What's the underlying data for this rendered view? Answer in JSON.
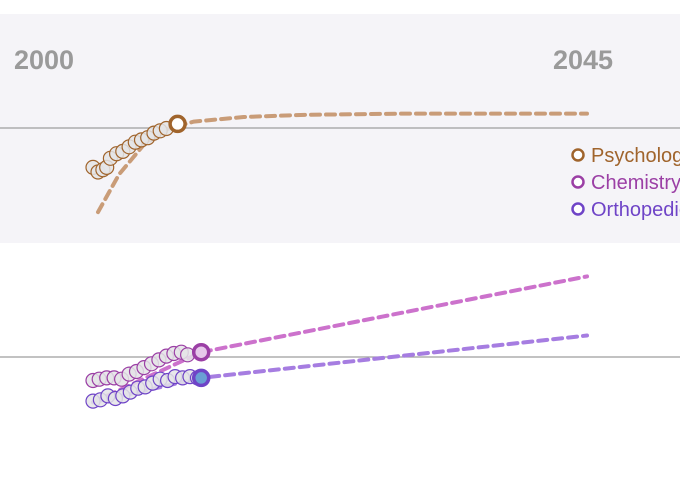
{
  "chart_data": {
    "type": "scatter",
    "x_tick_labels": [
      "2000",
      "2045"
    ],
    "xlim": [
      2000,
      2045
    ],
    "grid": true,
    "legend_position": "right",
    "shaded_band": true,
    "series": [
      {
        "name": "Psychology",
        "color": "#a0642c",
        "trend_color": "#c99c78",
        "points": [
          [
            2004.9,
            0.33
          ],
          [
            2005.3,
            0.31
          ],
          [
            2005.7,
            0.32
          ],
          [
            2006.0,
            0.33
          ],
          [
            2006.3,
            0.37
          ],
          [
            2006.8,
            0.39
          ],
          [
            2007.3,
            0.4
          ],
          [
            2007.8,
            0.42
          ],
          [
            2008.3,
            0.44
          ],
          [
            2008.8,
            0.45
          ],
          [
            2009.3,
            0.46
          ],
          [
            2009.8,
            0.48
          ],
          [
            2010.3,
            0.49
          ],
          [
            2010.8,
            0.5
          ]
        ],
        "highlight": [
          2011.7,
          0.52
        ],
        "trend": [
          [
            2005.3,
            0.135
          ],
          [
            2007.0,
            0.3
          ],
          [
            2009.0,
            0.43
          ],
          [
            2011.0,
            0.5
          ],
          [
            2013.0,
            0.53
          ],
          [
            2017.0,
            0.55
          ],
          [
            2022.0,
            0.56
          ],
          [
            2030.0,
            0.565
          ],
          [
            2044.6,
            0.565
          ]
        ]
      },
      {
        "name": "Chemistry",
        "color": "#9b3fa5",
        "trend_color": "#cc72cc",
        "points": [
          [
            2004.9,
            0.465
          ],
          [
            2005.4,
            0.47
          ],
          [
            2006.0,
            0.475
          ],
          [
            2006.6,
            0.475
          ],
          [
            2007.2,
            0.47
          ],
          [
            2007.8,
            0.49
          ],
          [
            2008.4,
            0.5
          ],
          [
            2009.0,
            0.515
          ],
          [
            2009.6,
            0.53
          ],
          [
            2010.2,
            0.545
          ],
          [
            2010.8,
            0.56
          ],
          [
            2011.4,
            0.57
          ],
          [
            2012.0,
            0.575
          ],
          [
            2012.5,
            0.565
          ]
        ],
        "highlight": [
          2013.6,
          0.575
        ],
        "trend": [
          [
            2004.9,
            0.38
          ],
          [
            2013.6,
            0.575
          ],
          [
            2044.6,
            0.87
          ]
        ]
      },
      {
        "name": "Orthopedics",
        "color": "#6f44c7",
        "trend_color": "#a67de1",
        "points": [
          [
            2004.9,
            0.385
          ],
          [
            2005.5,
            0.39
          ],
          [
            2006.1,
            0.405
          ],
          [
            2006.7,
            0.395
          ],
          [
            2007.3,
            0.405
          ],
          [
            2007.9,
            0.42
          ],
          [
            2008.5,
            0.435
          ],
          [
            2009.1,
            0.44
          ],
          [
            2009.7,
            0.455
          ],
          [
            2010.3,
            0.47
          ],
          [
            2010.9,
            0.465
          ],
          [
            2011.5,
            0.48
          ],
          [
            2012.1,
            0.475
          ],
          [
            2012.7,
            0.48
          ],
          [
            2013.3,
            0.475
          ]
        ],
        "highlight": [
          2013.6,
          0.475
        ],
        "trend": [
          [
            2004.9,
            0.38
          ],
          [
            2013.6,
            0.475
          ],
          [
            2044.6,
            0.64
          ]
        ]
      }
    ]
  }
}
